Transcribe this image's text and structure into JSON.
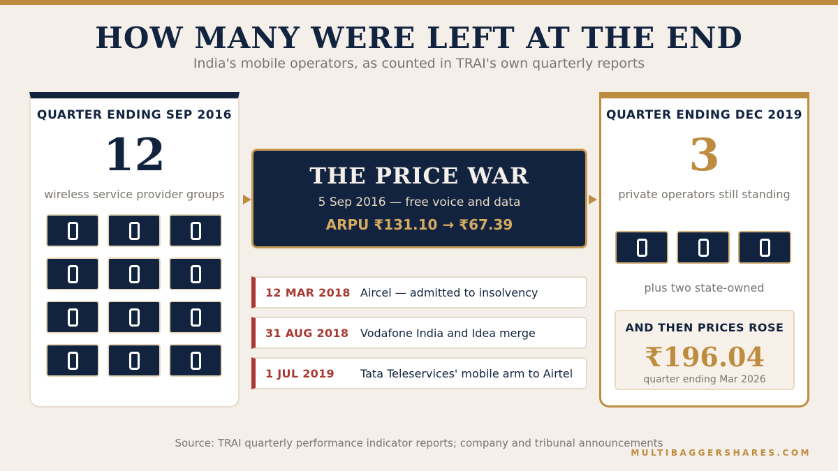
{
  "header": {
    "title": "HOW MANY WERE LEFT AT THE END",
    "subtitle": "India's mobile operators, as counted in TRAI's own quarterly reports"
  },
  "left_panel": {
    "heading": "QUARTER ENDING SEP 2016",
    "count": "12",
    "caption": "wireless service provider groups",
    "operator_icon_count": 12
  },
  "center": {
    "title": "THE PRICE WAR",
    "date_line": "5 Sep 2016 — free voice and data",
    "arpu_line": "ARPU ₹131.10 → ₹67.39",
    "events": [
      {
        "date": "12 MAR 2018",
        "text": "Aircel — admitted to insolvency"
      },
      {
        "date": "31 AUG 2018",
        "text": "Vodafone India and Idea merge"
      },
      {
        "date": "1 JUL 2019",
        "text": "Tata Teleservices' mobile arm to Airtel"
      }
    ]
  },
  "right_panel": {
    "heading": "QUARTER ENDING DEC 2019",
    "count": "3",
    "caption": "private operators still standing",
    "operator_icon_count": 3,
    "state_note": "plus two state-owned",
    "rose": {
      "heading": "AND THEN PRICES ROSE",
      "value": "₹196.04",
      "note": "quarter ending Mar 2026"
    }
  },
  "footer": {
    "source": "Source: TRAI quarterly performance indicator reports; company and tribunal announcements",
    "brand": "MULTIBAGGERSHARES.COM"
  },
  "colors": {
    "navy": "#12233f",
    "gold": "#bd8c3f",
    "red": "#a83a32",
    "background": "#f4efe9"
  },
  "icons": {
    "operator": "sim-card-icon"
  }
}
